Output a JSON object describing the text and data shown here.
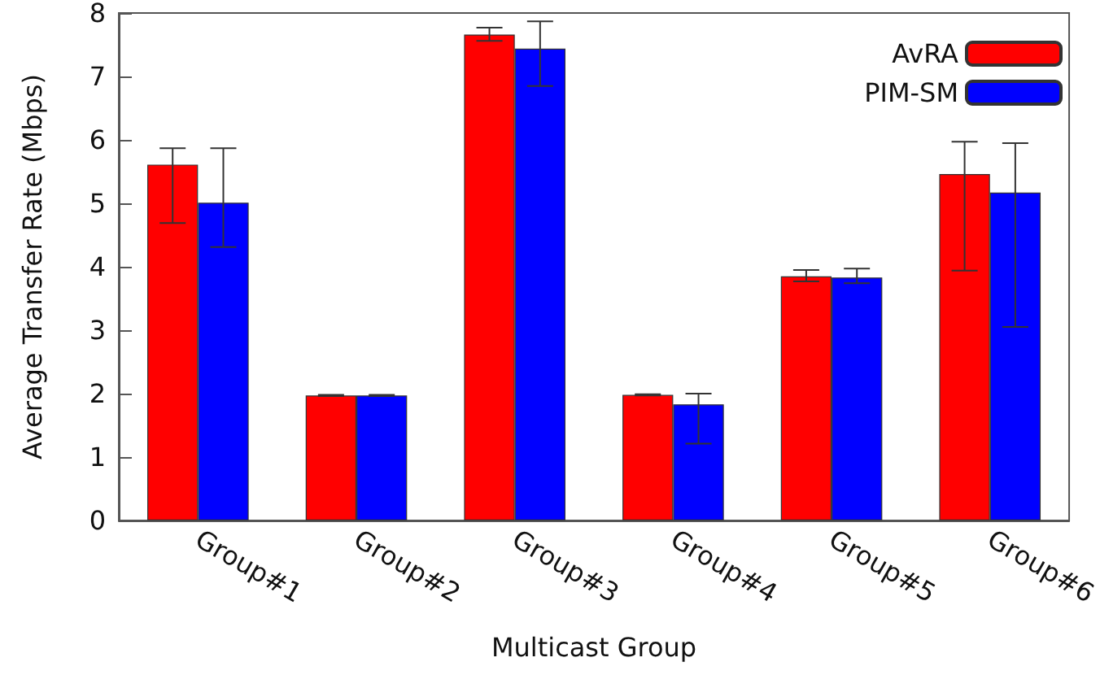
{
  "chart_data": {
    "type": "bar",
    "xlabel": "Multicast Group",
    "ylabel": "Average Transfer Rate (Mbps)",
    "categories": [
      "Group#1",
      "Group#2",
      "Group#3",
      "Group#4",
      "Group#5",
      "Group#6"
    ],
    "series": [
      {
        "name": "AvRA",
        "color": "#ff0000",
        "values": [
          5.61,
          1.97,
          7.66,
          1.98,
          3.85,
          5.46
        ],
        "errors": [
          [
            4.69,
            5.87
          ],
          [
            1.96,
            1.98
          ],
          [
            7.56,
            7.77
          ],
          [
            1.97,
            1.99
          ],
          [
            3.77,
            3.95
          ],
          [
            3.94,
            5.97
          ]
        ]
      },
      {
        "name": "PIM-SM",
        "color": "#0000ff",
        "values": [
          5.01,
          1.97,
          7.44,
          1.83,
          3.83,
          5.17
        ],
        "errors": [
          [
            4.31,
            5.87
          ],
          [
            1.96,
            1.98
          ],
          [
            6.85,
            7.87
          ],
          [
            1.21,
            2.0
          ],
          [
            3.74,
            3.97
          ],
          [
            3.05,
            5.95
          ]
        ]
      }
    ],
    "ylim": [
      0,
      8
    ],
    "yticks": [
      0,
      1,
      2,
      3,
      4,
      5,
      6,
      7,
      8
    ],
    "grid": false,
    "legend": "top right"
  }
}
